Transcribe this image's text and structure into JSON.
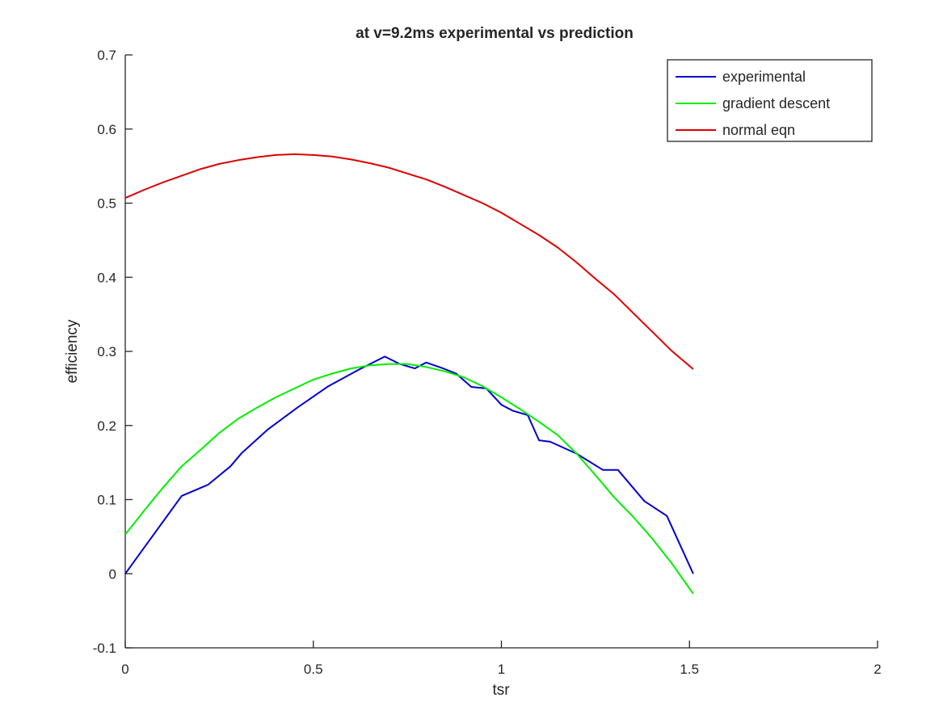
{
  "chart_data": {
    "type": "line",
    "title": "at v=9.2ms experimental vs prediction",
    "xlabel": "tsr",
    "ylabel": "efficiency",
    "xlim": [
      0,
      2
    ],
    "ylim": [
      -0.1,
      0.7
    ],
    "xticks": [
      "0",
      "0.5",
      "1",
      "1.5",
      "2"
    ],
    "yticks": [
      "-0.1",
      "0",
      "0.1",
      "0.2",
      "0.3",
      "0.4",
      "0.5",
      "0.6",
      "0.7"
    ],
    "legend_position": "top-right",
    "grid": false,
    "series": [
      {
        "name": "experimental",
        "color": "#0000cc",
        "x": [
          0,
          0.05,
          0.1,
          0.15,
          0.22,
          0.28,
          0.31,
          0.38,
          0.46,
          0.54,
          0.62,
          0.69,
          0.73,
          0.77,
          0.8,
          0.84,
          0.88,
          0.92,
          0.96,
          1.0,
          1.03,
          1.07,
          1.1,
          1.13,
          1.2,
          1.27,
          1.31,
          1.38,
          1.44,
          1.51
        ],
        "y": [
          0,
          0.035,
          0.07,
          0.105,
          0.12,
          0.145,
          0.163,
          0.195,
          0.225,
          0.253,
          0.275,
          0.293,
          0.283,
          0.277,
          0.285,
          0.278,
          0.27,
          0.252,
          0.25,
          0.228,
          0.22,
          0.214,
          0.18,
          0.178,
          0.162,
          0.14,
          0.14,
          0.098,
          0.078,
          0
        ]
      },
      {
        "name": "gradient descent",
        "color": "#00ee00",
        "x": [
          0,
          0.05,
          0.1,
          0.15,
          0.2,
          0.25,
          0.3,
          0.35,
          0.4,
          0.45,
          0.5,
          0.55,
          0.6,
          0.65,
          0.7,
          0.75,
          0.8,
          0.85,
          0.9,
          0.95,
          1.0,
          1.05,
          1.1,
          1.15,
          1.2,
          1.25,
          1.3,
          1.35,
          1.4,
          1.45,
          1.51
        ],
        "y": [
          0.053,
          0.085,
          0.116,
          0.145,
          0.167,
          0.19,
          0.209,
          0.224,
          0.238,
          0.25,
          0.262,
          0.27,
          0.277,
          0.281,
          0.283,
          0.283,
          0.279,
          0.273,
          0.265,
          0.253,
          0.238,
          0.222,
          0.205,
          0.187,
          0.162,
          0.133,
          0.103,
          0.077,
          0.048,
          0.016,
          -0.027
        ]
      },
      {
        "name": "normal eqn",
        "color": "#dd0000",
        "x": [
          0,
          0.05,
          0.1,
          0.15,
          0.2,
          0.25,
          0.3,
          0.35,
          0.4,
          0.45,
          0.5,
          0.55,
          0.6,
          0.65,
          0.7,
          0.75,
          0.8,
          0.85,
          0.9,
          0.95,
          1.0,
          1.05,
          1.1,
          1.15,
          1.2,
          1.25,
          1.3,
          1.35,
          1.4,
          1.45,
          1.51
        ],
        "y": [
          0.507,
          0.518,
          0.528,
          0.537,
          0.546,
          0.553,
          0.558,
          0.562,
          0.565,
          0.566,
          0.565,
          0.563,
          0.559,
          0.554,
          0.548,
          0.54,
          0.532,
          0.522,
          0.511,
          0.5,
          0.487,
          0.472,
          0.457,
          0.44,
          0.42,
          0.398,
          0.377,
          0.352,
          0.327,
          0.302,
          0.276
        ]
      }
    ]
  }
}
